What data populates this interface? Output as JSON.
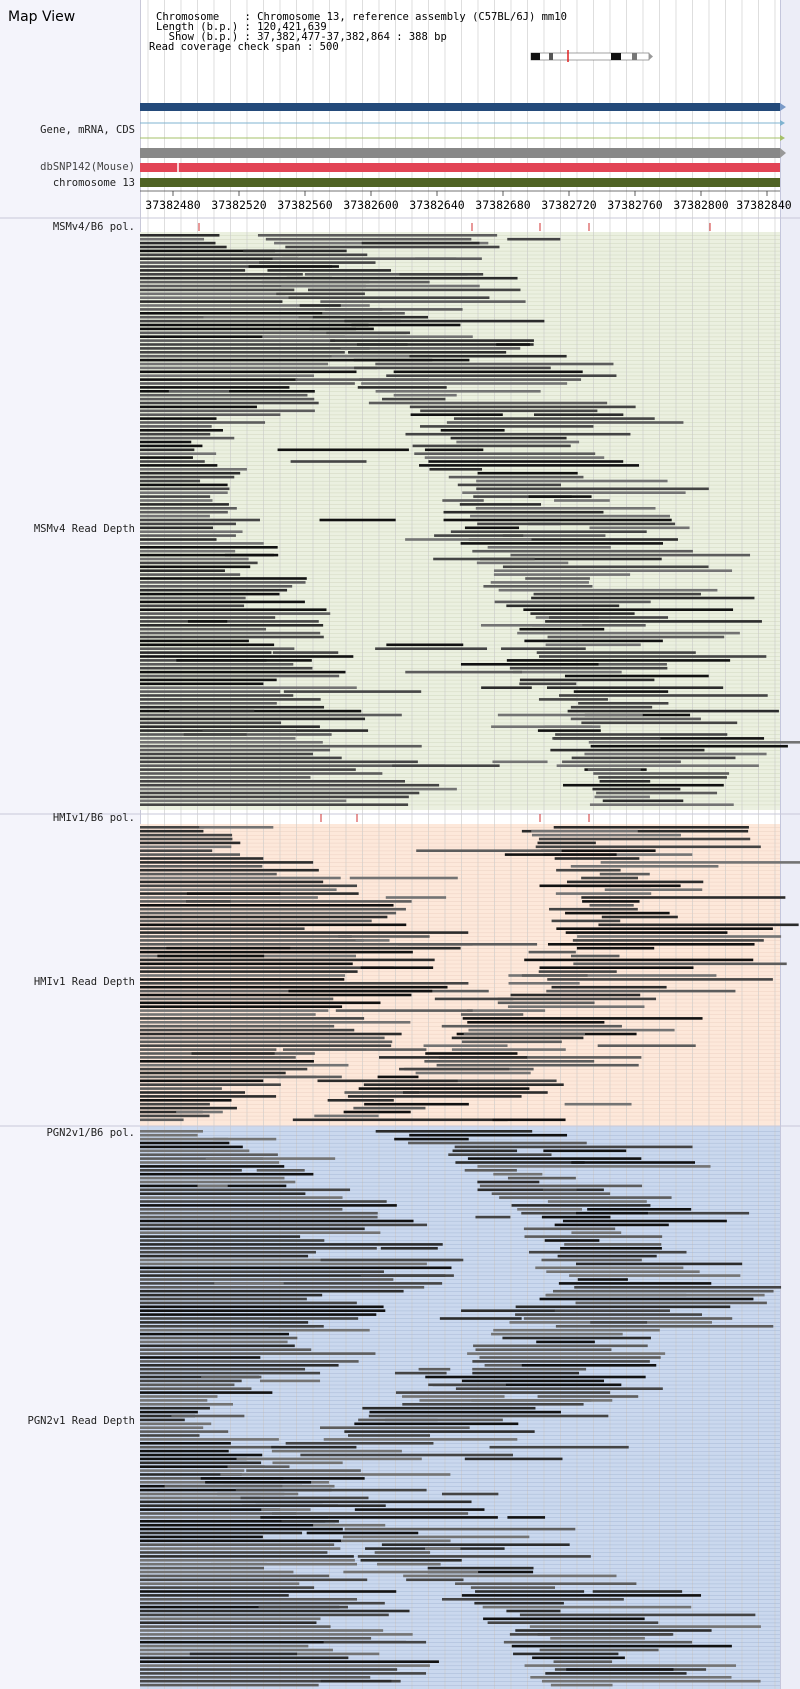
{
  "header": {
    "title": "Map View",
    "chromosome_line": "Chromosome    : Chromosome 13, reference assembly (C57BL/6J) mm10",
    "length_line": "Length (b.p.) : 120,421,639",
    "show_line": "  Show (b.p.) : 37,382,477-37,382,864 : 388 bp",
    "coverage_line": "Read coverage check span : 500"
  },
  "tracks": {
    "gene": "Gene, mRNA, CDS",
    "dbsnp": "dbSNP142(Mouse)",
    "chromosome": "chromosome 13"
  },
  "axis": {
    "ticks": [
      "37382480",
      "37382520",
      "37382560",
      "37382600",
      "37382640",
      "37382680",
      "37382720",
      "37382760",
      "37382800",
      "37382840"
    ]
  },
  "samples": [
    {
      "pol_label": "MSMv4/B6 pol.",
      "depth_label": "MSMv4 Read Depth",
      "bg": "#ebf0e0"
    },
    {
      "pol_label": "HMIv1/B6 pol.",
      "depth_label": "HMIv1 Read Depth",
      "bg": "#fde8da"
    },
    {
      "pol_label": "PGN2v1/B6 pol.",
      "depth_label": "PGN2v1 Read Depth",
      "bg": "#cad8ee"
    }
  ],
  "colors": {
    "gene_bar": "#244a7a",
    "dbsnp_bar": "#e24455",
    "snp_tick": "#d03030",
    "chrom_bar": "#4f6323",
    "gray_bar": "#888888"
  }
}
